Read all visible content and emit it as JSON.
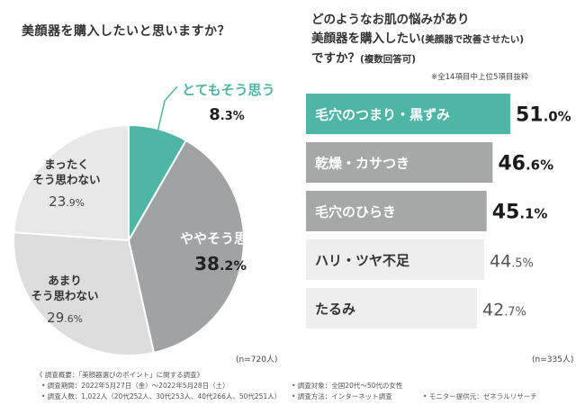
{
  "chart_data": [
    {
      "type": "pie",
      "title": "美顔器を購入したいと思いますか？",
      "slices": [
        {
          "label": "とてもそう思う",
          "value": 8.3,
          "color": "#4db6a4"
        },
        {
          "label": "ややそう思う",
          "value": 38.2,
          "color": "#a0a3a3"
        },
        {
          "label": "あまり\nそう思わない",
          "value": 29.6,
          "color": "#dddddd"
        },
        {
          "label": "まったく\nそう思わない",
          "value": 23.9,
          "color": "#e8e8e8"
        }
      ],
      "n_label": "(n=720人)"
    },
    {
      "type": "bar",
      "orientation": "horizontal",
      "title_lines": [
        "どのようなお肌の悩みがあり",
        "美顔器を購入したい",
        "ですか？"
      ],
      "title_suffix_1": "(美顔器で改善させたい)",
      "title_suffix_2": "(複数回答可)",
      "note": "※全14項目中上位5項目抜粋",
      "categories": [
        "毛穴のつまり・黒ずみ",
        "乾燥・カサつき",
        "毛穴のひらき",
        "ハリ・ツヤ不足",
        "たるみ"
      ],
      "values": [
        51.0,
        46.6,
        45.1,
        44.5,
        42.7
      ],
      "colors": [
        "#4db6a4",
        "#a6a8a8",
        "#a6a8a8",
        "#eeeeee",
        "#eeeeee"
      ],
      "label_colors": [
        "#ffffff",
        "#ffffff",
        "#ffffff",
        "#333333",
        "#333333"
      ],
      "n_label": "(n=335人)"
    }
  ],
  "footer": {
    "summary": "《 調査概要：「美顔器選びのポイント」に関する調査》",
    "period": "• 調査期間：2022年5月27日（金）〜2022年5月28日（土）",
    "count": "• 調査人数：1,022人（20代252人、30代253人、40代266人、50代251人）",
    "target": "• 調査対象：全国20代〜50代の女性",
    "method": "• 調査方法：インターネット調査",
    "provider": "• モニター提供元：ゼネラルリサーチ"
  }
}
